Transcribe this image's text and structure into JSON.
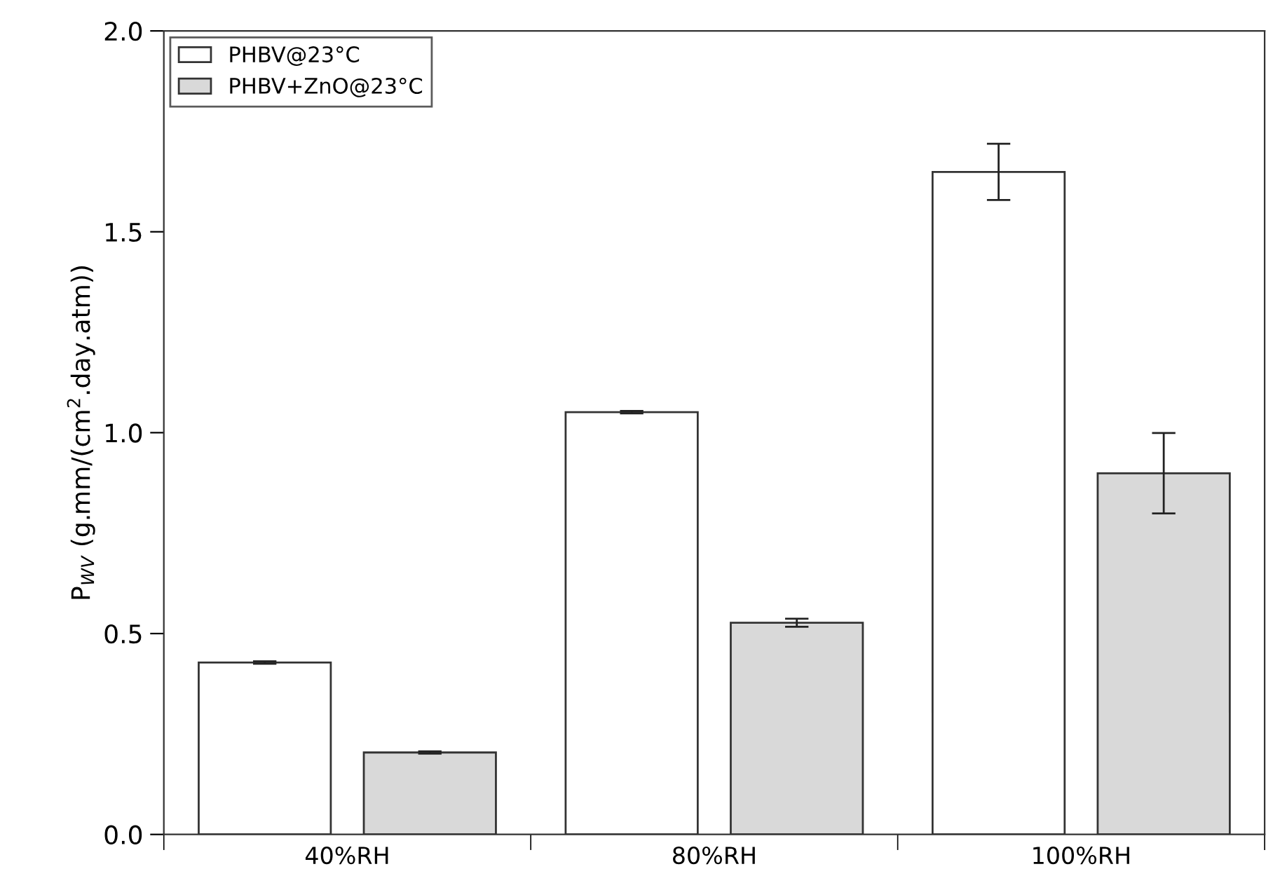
{
  "chart_data": {
    "type": "bar",
    "ylabel": "P$_{WV}$ (g.mm/(cm$^{2}$.day.atm))",
    "categories": [
      "40%RH",
      "80%RH",
      "100%RH"
    ],
    "series": [
      {
        "name": "PHBV@23°C",
        "color": "#ffffff",
        "values": [
          0.428,
          1.051,
          1.649
        ],
        "errors": [
          0.003,
          0.003,
          0.07
        ]
      },
      {
        "name": "PHBV+ZnO@23°C",
        "color": "#d9d9d9",
        "values": [
          0.204,
          0.527,
          0.899
        ],
        "errors": [
          0.003,
          0.01,
          0.1
        ]
      }
    ],
    "ylim": [
      0,
      2.0
    ],
    "yticks": [
      {
        "value": 0,
        "label": "0.0"
      },
      0.5,
      {
        "value": 1,
        "label": "1.0"
      },
      1.5,
      {
        "value": 2,
        "label": "2.0"
      }
    ],
    "grid": false,
    "legend": "top left"
  }
}
